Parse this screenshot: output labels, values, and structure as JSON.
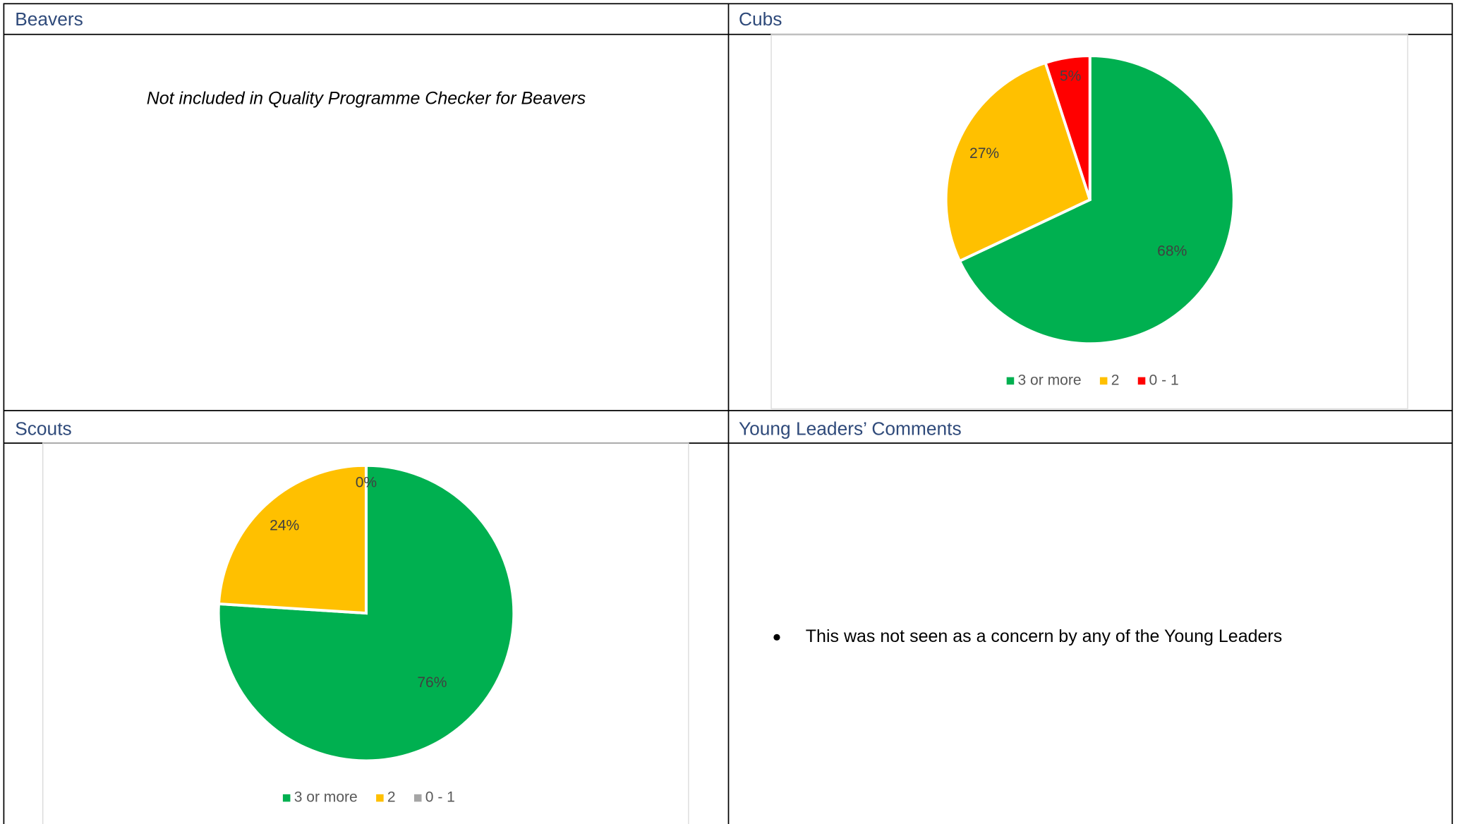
{
  "cells": [
    {
      "header": "Beavers",
      "text": "Not included in Quality Programme Checker for Beavers"
    },
    {
      "header": "Cubs"
    },
    {
      "header": "Scouts"
    },
    {
      "header": "Young Leaders’ Comments",
      "bullets": [
        "This was not seen as a concern by any of the Young Leaders"
      ]
    }
  ],
  "chart_data": [
    {
      "type": "pie",
      "categories": [
        "3 or more",
        "2",
        "0 - 1"
      ],
      "values": [
        68,
        27,
        5
      ],
      "value_labels": [
        "68%",
        "27%",
        "5%"
      ],
      "colors": [
        "#00b050",
        "#ffc000",
        "#ff0000"
      ]
    },
    {
      "type": "pie",
      "categories": [
        "3 or more",
        "2",
        "0 - 1"
      ],
      "values": [
        76,
        24,
        0
      ],
      "value_labels": [
        "76%",
        "24%",
        "0%"
      ],
      "colors": [
        "#00b050",
        "#ffc000",
        "#a5a5a5"
      ]
    }
  ]
}
